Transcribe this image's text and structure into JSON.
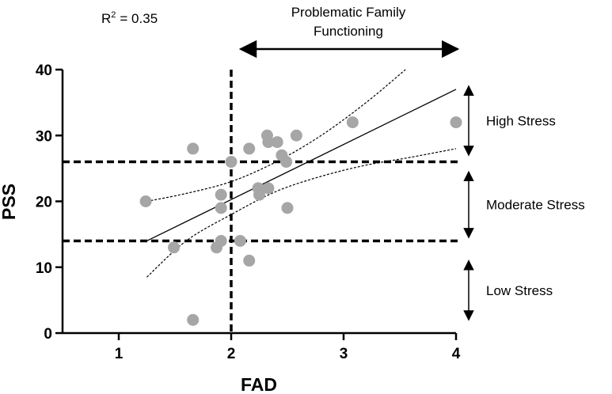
{
  "chart_data": {
    "type": "scatter",
    "xlabel": "FAD",
    "ylabel": "PSS",
    "xlim": [
      0.5,
      4
    ],
    "ylim": [
      0,
      40
    ],
    "x_ticks": [
      1,
      2,
      3,
      4
    ],
    "y_ticks": [
      0,
      10,
      20,
      30,
      40
    ],
    "x_tick_labels": [
      "1",
      "2",
      "3",
      "4"
    ],
    "y_tick_labels": [
      "0",
      "10",
      "20",
      "30",
      "40"
    ],
    "grid": false,
    "marker_color": "#A6A6A6",
    "r_squared": {
      "prefix": "R",
      "superscript": "2",
      "value_text": "= 0.35"
    },
    "points": [
      {
        "x": 1.24,
        "y": 20
      },
      {
        "x": 1.49,
        "y": 13
      },
      {
        "x": 1.66,
        "y": 28
      },
      {
        "x": 1.66,
        "y": 2
      },
      {
        "x": 1.87,
        "y": 13
      },
      {
        "x": 1.91,
        "y": 21
      },
      {
        "x": 1.91,
        "y": 19
      },
      {
        "x": 1.91,
        "y": 14
      },
      {
        "x": 2.0,
        "y": 26
      },
      {
        "x": 2.08,
        "y": 14
      },
      {
        "x": 2.16,
        "y": 28
      },
      {
        "x": 2.16,
        "y": 11
      },
      {
        "x": 2.24,
        "y": 22
      },
      {
        "x": 2.25,
        "y": 21
      },
      {
        "x": 2.32,
        "y": 30
      },
      {
        "x": 2.33,
        "y": 29
      },
      {
        "x": 2.33,
        "y": 22
      },
      {
        "x": 2.41,
        "y": 29
      },
      {
        "x": 2.45,
        "y": 27
      },
      {
        "x": 2.49,
        "y": 26
      },
      {
        "x": 2.5,
        "y": 19
      },
      {
        "x": 2.58,
        "y": 30
      },
      {
        "x": 3.08,
        "y": 32
      },
      {
        "x": 4.0,
        "y": 32
      }
    ],
    "regression_line": {
      "x": [
        1.25,
        4.0
      ],
      "y": [
        14.0,
        37.0
      ]
    },
    "confidence_band": {
      "upper": {
        "x": [
          1.25,
          1.6,
          2.0,
          2.4,
          2.8,
          3.2,
          3.55
        ],
        "y": [
          20.0,
          21.2,
          23.0,
          26.0,
          30.0,
          35.0,
          40.0
        ]
      },
      "lower": {
        "x": [
          1.25,
          1.6,
          2.0,
          2.4,
          2.8,
          3.2,
          3.6,
          4.0
        ],
        "y": [
          8.5,
          14.0,
          18.0,
          21.5,
          23.8,
          25.5,
          26.7,
          28.0
        ]
      }
    },
    "thresholds": {
      "vertical_x": 2.0,
      "horizontal_y": [
        14,
        26
      ]
    },
    "annotations": {
      "family_functioning": {
        "line1": "Problematic Family",
        "line2": "Functioning",
        "arrow_x_range": [
          2.0,
          4.0
        ]
      },
      "stress_levels": [
        {
          "label": "High Stress",
          "y_range": [
            27,
            37.5
          ]
        },
        {
          "label": "Moderate Stress",
          "y_range": [
            14.5,
            24.5
          ]
        },
        {
          "label": "Low Stress",
          "y_range": [
            2,
            11
          ]
        }
      ]
    }
  }
}
